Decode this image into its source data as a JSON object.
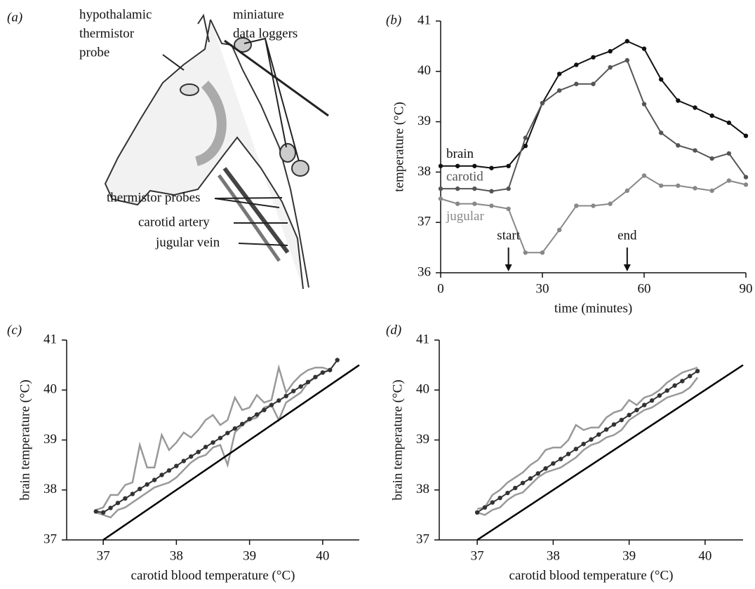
{
  "figure_a": {
    "panel_label": "(a)",
    "labels": [
      {
        "lines": [
          "hypothalamic",
          "thermistor",
          "probe"
        ]
      },
      {
        "lines": [
          "miniature",
          "data loggers"
        ]
      },
      {
        "lines": [
          "thermistor probes"
        ]
      },
      {
        "lines": [
          "carotid artery"
        ]
      },
      {
        "lines": [
          "jugular vein"
        ]
      }
    ]
  },
  "chart_data": [
    {
      "type": "line",
      "panel_label": "(b)",
      "xlabel": "time (minutes)",
      "ylabel": "temperature (°C)",
      "x": [
        0,
        5,
        10,
        15,
        20,
        25,
        30,
        35,
        40,
        45,
        50,
        55,
        60,
        65,
        70,
        75,
        80,
        85,
        90
      ],
      "xlim": [
        0,
        90
      ],
      "xticks": [
        0,
        30,
        60,
        90
      ],
      "ylim": [
        36,
        41
      ],
      "yticks": [
        36,
        37,
        38,
        39,
        40,
        41
      ],
      "series": [
        {
          "name": "brain",
          "color": "#111111",
          "markers": true,
          "values": [
            38.12,
            38.12,
            38.12,
            38.08,
            38.12,
            38.52,
            39.37,
            39.95,
            40.13,
            40.28,
            40.4,
            40.6,
            40.45,
            39.84,
            39.42,
            39.28,
            39.12,
            38.98,
            38.72
          ]
        },
        {
          "name": "carotid",
          "color": "#555555",
          "markers": true,
          "values": [
            37.67,
            37.67,
            37.67,
            37.62,
            37.67,
            38.68,
            39.37,
            39.62,
            39.75,
            39.75,
            40.08,
            40.22,
            39.35,
            38.78,
            38.53,
            38.43,
            38.27,
            38.37,
            37.9
          ]
        },
        {
          "name": "jugular",
          "color": "#888888",
          "markers": true,
          "values": [
            37.47,
            37.37,
            37.37,
            37.33,
            37.27,
            36.4,
            36.4,
            36.85,
            37.33,
            37.33,
            37.37,
            37.63,
            37.93,
            37.73,
            37.73,
            37.68,
            37.63,
            37.83,
            37.75
          ]
        }
      ],
      "annotations": [
        {
          "text": "start",
          "x": 20
        },
        {
          "text": "end",
          "x": 55
        }
      ]
    },
    {
      "type": "line",
      "panel_label": "(c)",
      "xlabel": "carotid blood temperature (°C)",
      "ylabel": "brain temperature (°C)",
      "x": [
        36.9,
        37.0,
        37.1,
        37.2,
        37.3,
        37.4,
        37.5,
        37.6,
        37.7,
        37.8,
        37.9,
        38.0,
        38.1,
        38.2,
        38.3,
        38.4,
        38.5,
        38.6,
        38.7,
        38.8,
        38.9,
        39.0,
        39.1,
        39.2,
        39.3,
        39.4,
        39.5,
        39.6,
        39.7,
        39.8,
        39.9,
        40.0,
        40.1,
        40.2
      ],
      "xlim": [
        36.5,
        40.5
      ],
      "xticks": [
        37,
        38,
        39,
        40
      ],
      "ylim": [
        37,
        41
      ],
      "yticks": [
        37,
        38,
        39,
        40,
        41
      ],
      "series": [
        {
          "color": "#999999",
          "values": [
            37.6,
            37.65,
            37.9,
            37.9,
            38.1,
            38.15,
            38.9,
            38.45,
            38.45,
            39.1,
            38.8,
            38.95,
            39.15,
            39.05,
            39.2,
            39.4,
            39.5,
            39.3,
            39.4,
            39.85,
            39.6,
            39.65,
            39.9,
            39.75,
            39.8,
            40.45,
            39.95,
            40.15,
            40.3,
            40.4,
            40.45,
            40.45,
            40.4,
            null
          ]
        },
        {
          "color": "#999999",
          "values": [
            37.55,
            37.5,
            37.45,
            37.6,
            37.65,
            37.75,
            37.85,
            37.95,
            38.05,
            38.1,
            38.15,
            38.25,
            38.4,
            38.55,
            38.65,
            38.7,
            38.85,
            38.9,
            38.5,
            39.15,
            39.3,
            39.4,
            39.45,
            39.65,
            39.7,
            39.4,
            39.75,
            39.85,
            39.95,
            40.15,
            40.25,
            40.35,
            40.4,
            null
          ]
        },
        {
          "color": "#333333",
          "markers": true,
          "values": [
            37.57,
            37.55,
            37.64,
            37.74,
            37.83,
            37.92,
            38.02,
            38.11,
            38.2,
            38.3,
            38.39,
            38.48,
            38.58,
            38.67,
            38.76,
            38.86,
            38.95,
            39.04,
            39.14,
            39.23,
            39.32,
            39.42,
            39.51,
            39.6,
            39.7,
            39.79,
            39.88,
            39.98,
            40.07,
            40.16,
            40.26,
            40.35,
            40.4,
            40.6
          ]
        },
        {
          "color": "#000000",
          "x": [
            37,
            40.5
          ],
          "values": [
            37,
            40.5
          ]
        }
      ]
    },
    {
      "type": "line",
      "panel_label": "(d)",
      "xlabel": "carotid blood temperature (°C)",
      "ylabel": "brain temperature (°C)",
      "x": [
        37.0,
        37.1,
        37.2,
        37.3,
        37.4,
        37.5,
        37.6,
        37.7,
        37.8,
        37.9,
        38.0,
        38.1,
        38.2,
        38.3,
        38.4,
        38.5,
        38.6,
        38.7,
        38.8,
        38.9,
        39.0,
        39.1,
        39.2,
        39.3,
        39.4,
        39.5,
        39.6,
        39.7,
        39.8,
        39.9
      ],
      "xlim": [
        36.5,
        40.5
      ],
      "xticks": [
        37,
        38,
        39,
        40
      ],
      "ylim": [
        37,
        41
      ],
      "yticks": [
        37,
        38,
        39,
        40,
        41
      ],
      "series": [
        {
          "color": "#999999",
          "values": [
            37.62,
            37.65,
            37.9,
            38.0,
            38.15,
            38.25,
            38.35,
            38.5,
            38.6,
            38.8,
            38.85,
            38.85,
            39.0,
            39.3,
            39.2,
            39.25,
            39.25,
            39.45,
            39.55,
            39.6,
            39.8,
            39.7,
            39.85,
            39.9,
            40.0,
            40.15,
            40.25,
            40.35,
            40.4,
            40.45
          ]
        },
        {
          "color": "#999999",
          "values": [
            37.55,
            37.5,
            37.6,
            37.65,
            37.8,
            37.9,
            37.95,
            38.1,
            38.25,
            38.35,
            38.4,
            38.45,
            38.55,
            38.65,
            38.8,
            38.9,
            38.95,
            39.05,
            39.1,
            39.2,
            39.4,
            39.5,
            39.6,
            39.65,
            39.75,
            39.85,
            39.9,
            39.95,
            40.05,
            40.25
          ]
        },
        {
          "color": "#333333",
          "markers": true,
          "values": [
            37.55,
            37.65,
            37.75,
            37.84,
            37.94,
            38.04,
            38.14,
            38.23,
            38.33,
            38.43,
            38.53,
            38.62,
            38.72,
            38.82,
            38.92,
            39.01,
            39.11,
            39.21,
            39.31,
            39.4,
            39.5,
            39.6,
            39.7,
            39.79,
            39.89,
            39.99,
            40.09,
            40.18,
            40.28,
            40.38
          ]
        },
        {
          "color": "#000000",
          "x": [
            37,
            40.5
          ],
          "values": [
            37,
            40.5
          ]
        }
      ]
    }
  ]
}
